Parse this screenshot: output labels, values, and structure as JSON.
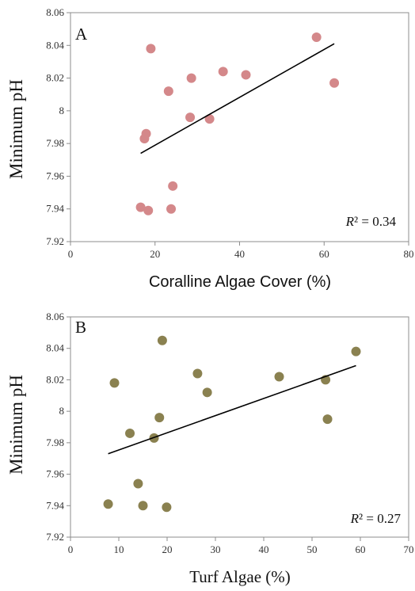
{
  "chart_data": [
    {
      "type": "scatter",
      "panel_label": "A",
      "xlabel": "Coralline Algae Cover (%)",
      "ylabel": "Minimum pH",
      "xlim": [
        0,
        80
      ],
      "ylim": [
        7.92,
        8.06
      ],
      "x_ticks": [
        "0",
        "20",
        "40",
        "60",
        "80"
      ],
      "y_ticks": [
        "7.92",
        "7.94",
        "7.96",
        "7.98",
        "8",
        "8.02",
        "8.04",
        "8.06"
      ],
      "point_color": "#d4888a",
      "points": [
        {
          "x": 16.6,
          "y": 7.941
        },
        {
          "x": 18.4,
          "y": 7.939
        },
        {
          "x": 17.5,
          "y": 7.983
        },
        {
          "x": 17.9,
          "y": 7.986
        },
        {
          "x": 19.0,
          "y": 8.038
        },
        {
          "x": 23.2,
          "y": 8.012
        },
        {
          "x": 23.8,
          "y": 7.94
        },
        {
          "x": 24.2,
          "y": 7.954
        },
        {
          "x": 28.3,
          "y": 7.996
        },
        {
          "x": 28.6,
          "y": 8.02
        },
        {
          "x": 32.9,
          "y": 7.995
        },
        {
          "x": 36.1,
          "y": 8.024
        },
        {
          "x": 41.5,
          "y": 8.022
        },
        {
          "x": 58.2,
          "y": 8.045
        },
        {
          "x": 62.4,
          "y": 8.017
        }
      ],
      "trendline": {
        "x": [
          16.6,
          62.4
        ],
        "y": [
          7.974,
          8.041
        ]
      },
      "annotation": {
        "r_symbol": "R",
        "superscript": "²",
        "text": " = 0.34"
      },
      "grid": false
    },
    {
      "type": "scatter",
      "panel_label": "B",
      "xlabel": "Turf Algae (%)",
      "ylabel": "Minimum pH",
      "xlim": [
        0,
        70
      ],
      "ylim": [
        7.92,
        8.06
      ],
      "x_ticks": [
        "0",
        "10",
        "20",
        "30",
        "40",
        "50",
        "60",
        "70"
      ],
      "y_ticks": [
        "7.92",
        "7.94",
        "7.96",
        "7.98",
        "8",
        "8.02",
        "8.04",
        "8.06"
      ],
      "point_color": "#8a8150",
      "points": [
        {
          "x": 7.8,
          "y": 7.941
        },
        {
          "x": 9.1,
          "y": 8.018
        },
        {
          "x": 12.3,
          "y": 7.986
        },
        {
          "x": 14.0,
          "y": 7.954
        },
        {
          "x": 15.0,
          "y": 7.94
        },
        {
          "x": 17.3,
          "y": 7.983
        },
        {
          "x": 18.4,
          "y": 7.996
        },
        {
          "x": 19.0,
          "y": 8.045
        },
        {
          "x": 19.9,
          "y": 7.939
        },
        {
          "x": 26.3,
          "y": 8.024
        },
        {
          "x": 28.3,
          "y": 8.012
        },
        {
          "x": 43.2,
          "y": 8.022
        },
        {
          "x": 52.8,
          "y": 8.02
        },
        {
          "x": 53.2,
          "y": 7.995
        },
        {
          "x": 59.1,
          "y": 8.038
        }
      ],
      "trendline": {
        "x": [
          7.8,
          59.1
        ],
        "y": [
          7.973,
          8.029
        ]
      },
      "annotation": {
        "r_symbol": "R",
        "superscript": "²",
        "text": " = 0.27"
      },
      "grid": false
    }
  ]
}
